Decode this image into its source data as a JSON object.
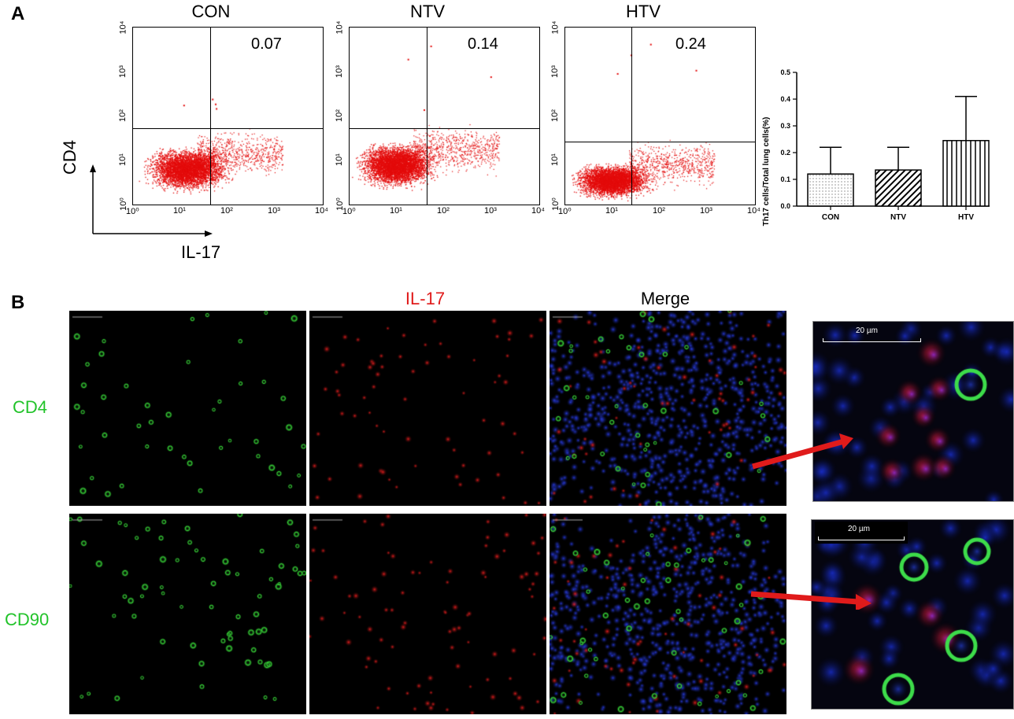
{
  "panel_a": {
    "letter": "A",
    "axis_y_label": "CD4",
    "axis_x_label": "IL-17",
    "tick_labels": [
      "10⁰",
      "10¹",
      "10²",
      "10³",
      "10⁴"
    ],
    "plots": [
      {
        "title": "CON",
        "quadrant_value": "0.07"
      },
      {
        "title": "NTV",
        "quadrant_value": "0.14"
      },
      {
        "title": "HTV",
        "quadrant_value": "0.24"
      }
    ],
    "dot_color": "#e30b0b"
  },
  "chart_data": {
    "type": "bar",
    "categories": [
      "CON",
      "NTV",
      "HTV"
    ],
    "values": [
      0.12,
      0.135,
      0.245
    ],
    "error_upper": [
      0.22,
      0.22,
      0.41
    ],
    "ylabel": "Th17 cells/Total lung cells(%)",
    "ylim": [
      0,
      0.5
    ],
    "yticks": [
      "0.0",
      "0.1",
      "0.2",
      "0.3",
      "0.4",
      "0.5"
    ],
    "fills": [
      "dotted",
      "diagonal-hatch",
      "vertical-hatch"
    ]
  },
  "panel_b": {
    "letter": "B",
    "column_labels": [
      "IL-17",
      "Merge"
    ],
    "column_label_colors": [
      "#e01b1b",
      "#000000"
    ],
    "row_labels": [
      "CD4",
      "CD90"
    ],
    "row_label_color": "#22c32a",
    "scale_bar": "20 µm",
    "arrow_color": "#e01b1b"
  }
}
